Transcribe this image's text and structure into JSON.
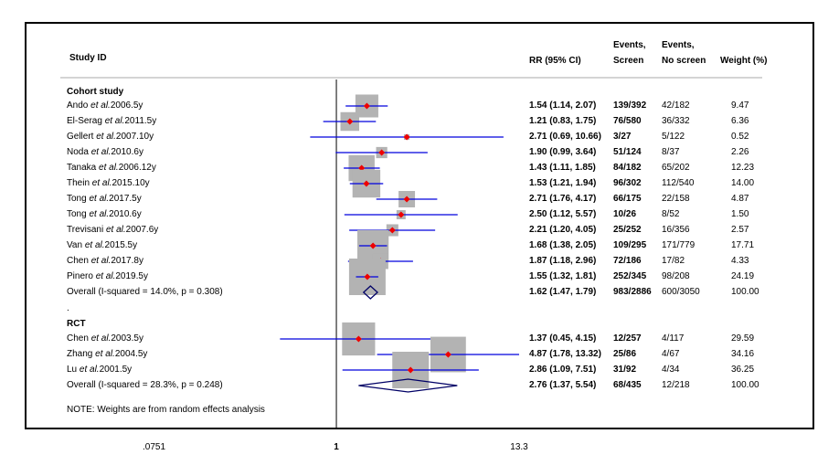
{
  "headers": {
    "study_id": "Study ID",
    "rr": "RR (95% CI)",
    "events_screen_1": "Events,",
    "events_screen_2": "Screen",
    "events_noscreen_1": "Events,",
    "events_noscreen_2": "No screen",
    "weight": "Weight (%)"
  },
  "groups": {
    "cohort": "Cohort study",
    "rct": "RCT"
  },
  "dot_line": ".",
  "note": "NOTE: Weights are from random effects analysis",
  "chart_data": {
    "type": "forest",
    "x_scale": "log",
    "xlim": [
      0.0751,
      13.3
    ],
    "x_ticks": [
      ".0751",
      "1",
      "13.3"
    ],
    "null_line": 1,
    "cohort_studies": [
      {
        "pre": "Ando ",
        "etal": "et al.",
        "post": "2006.5y",
        "rr": 1.54,
        "lo": 1.14,
        "hi": 2.07,
        "ci": "1.54 (1.14, 2.07)",
        "screen": "139/392",
        "noscreen": "42/182",
        "weight": "9.47"
      },
      {
        "pre": "El-Serag ",
        "etal": "et al.",
        "post": "2011.5y",
        "rr": 1.21,
        "lo": 0.83,
        "hi": 1.75,
        "ci": "1.21 (0.83, 1.75)",
        "screen": "76/580",
        "noscreen": "36/332",
        "weight": "6.36"
      },
      {
        "pre": "Gellert ",
        "etal": "et al.",
        "post": "2007.10y",
        "rr": 2.71,
        "lo": 0.69,
        "hi": 10.66,
        "ci": "2.71 (0.69, 10.66)",
        "screen": "3/27",
        "noscreen": "5/122",
        "weight": "0.52"
      },
      {
        "pre": "Noda ",
        "etal": "et al.",
        "post": "2010.6y",
        "rr": 1.9,
        "lo": 0.99,
        "hi": 3.64,
        "ci": "1.90 (0.99, 3.64)",
        "screen": "51/124",
        "noscreen": "8/37",
        "weight": "2.26"
      },
      {
        "pre": "Tanaka ",
        "etal": "et al.",
        "post": "2006.12y",
        "rr": 1.43,
        "lo": 1.11,
        "hi": 1.85,
        "ci": "1.43 (1.11, 1.85)",
        "screen": "84/182",
        "noscreen": "65/202",
        "weight": "12.23"
      },
      {
        "pre": "Thein ",
        "etal": "et al.",
        "post": "2015.10y",
        "rr": 1.53,
        "lo": 1.21,
        "hi": 1.94,
        "ci": "1.53 (1.21, 1.94)",
        "screen": "96/302",
        "noscreen": "112/540",
        "weight": "14.00"
      },
      {
        "pre": "Tong ",
        "etal": "et al.",
        "post": "2017.5y",
        "rr": 2.71,
        "lo": 1.76,
        "hi": 4.17,
        "ci": "2.71 (1.76, 4.17)",
        "screen": "66/175",
        "noscreen": "22/158",
        "weight": "4.87"
      },
      {
        "pre": "Tong ",
        "etal": "et al.",
        "post": "2010.6y",
        "rr": 2.5,
        "lo": 1.12,
        "hi": 5.57,
        "ci": "2.50 (1.12, 5.57)",
        "screen": "10/26",
        "noscreen": "8/52",
        "weight": "1.50"
      },
      {
        "pre": "Trevisani ",
        "etal": "et al.",
        "post": "2007.6y",
        "rr": 2.21,
        "lo": 1.2,
        "hi": 4.05,
        "ci": "2.21 (1.20, 4.05)",
        "screen": "25/252",
        "noscreen": "16/356",
        "weight": "2.57"
      },
      {
        "pre": "Van ",
        "etal": "et al.",
        "post": "2015.5y",
        "rr": 1.68,
        "lo": 1.38,
        "hi": 2.05,
        "ci": "1.68 (1.38, 2.05)",
        "screen": "109/295",
        "noscreen": "171/779",
        "weight": "17.71"
      },
      {
        "pre": "Chen ",
        "etal": "et al.",
        "post": "2017.8y",
        "rr": 1.87,
        "lo": 1.18,
        "hi": 2.96,
        "ci": "1.87 (1.18, 2.96)",
        "screen": "72/186",
        "noscreen": "17/82",
        "weight": "4.33"
      },
      {
        "pre": "Pinero ",
        "etal": "et al.",
        "post": "2019.5y",
        "rr": 1.55,
        "lo": 1.32,
        "hi": 1.81,
        "ci": "1.55 (1.32, 1.81)",
        "screen": "252/345",
        "noscreen": "98/208",
        "weight": "24.19"
      }
    ],
    "cohort_overall": {
      "label": "Overall  (I-squared = 14.0%, p = 0.308)",
      "rr": 1.62,
      "lo": 1.47,
      "hi": 1.79,
      "ci": "1.62 (1.47, 1.79)",
      "screen": "983/2886",
      "noscreen": "600/3050",
      "weight": "100.00"
    },
    "rct_studies": [
      {
        "pre": "Chen ",
        "etal": "et al.",
        "post": "2003.5y",
        "rr": 1.37,
        "lo": 0.45,
        "hi": 4.15,
        "ci": "1.37 (0.45, 4.15)",
        "screen": "12/257",
        "noscreen": "4/117",
        "weight": "29.59"
      },
      {
        "pre": "Zhang ",
        "etal": "et al.",
        "post": "2004.5y",
        "rr": 4.87,
        "lo": 1.78,
        "hi": 13.32,
        "ci": "4.87 (1.78, 13.32)",
        "screen": "25/86",
        "noscreen": "4/67",
        "weight": "34.16"
      },
      {
        "pre": "Lu ",
        "etal": "et al.",
        "post": "2001.5y",
        "rr": 2.86,
        "lo": 1.09,
        "hi": 7.51,
        "ci": "2.86 (1.09, 7.51)",
        "screen": "31/92",
        "noscreen": "4/34",
        "weight": "36.25"
      }
    ],
    "rct_overall": {
      "label": "Overall  (I-squared = 28.3%, p = 0.248)",
      "rr": 2.76,
      "lo": 1.37,
      "hi": 5.54,
      "ci": "2.76 (1.37, 5.54)",
      "screen": "68/435",
      "noscreen": "12/218",
      "weight": "100.00"
    },
    "colors": {
      "ci_line": "#0000dd",
      "box": "#b3b3b3",
      "point": "#ee0000",
      "diamond": "#000066",
      "axis": "#000000"
    }
  }
}
